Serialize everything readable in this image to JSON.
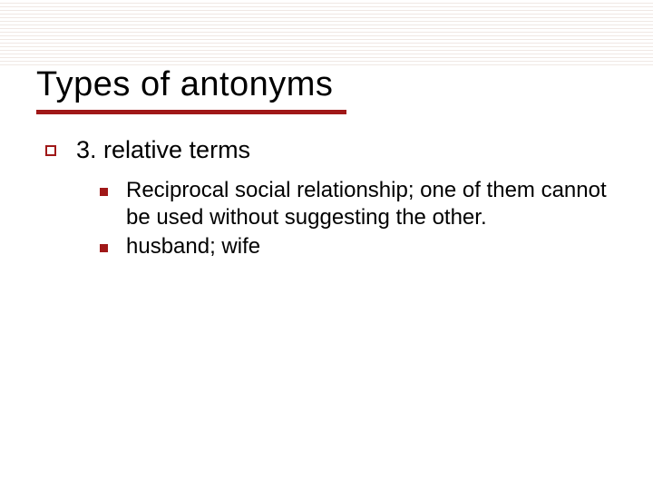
{
  "slide": {
    "title": "Types of antonyms",
    "title_fontsize": 38,
    "title_color": "#000000",
    "rule_color": "#a01818",
    "rule_width": 342,
    "rule_height": 5,
    "background_color": "#ffffff",
    "lined_area_height": 72,
    "line_color": "#f0e8e4",
    "bullet_outline_color": "#a01818",
    "bullet_solid_color": "#a01818",
    "level1": {
      "text": "3. relative terms",
      "fontsize": 27,
      "color": "#000000"
    },
    "level2_items": [
      "Reciprocal social relationship; one of them cannot be used without suggesting the other.",
      "husband; wife"
    ],
    "level2_fontsize": 24,
    "level2_color": "#000000"
  }
}
